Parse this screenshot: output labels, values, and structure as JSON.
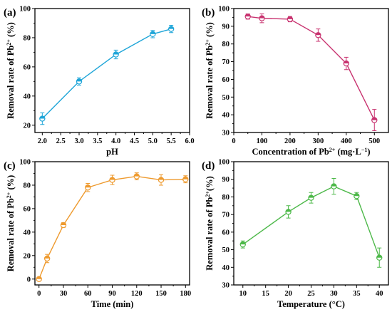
{
  "chart_data": [
    {
      "panel": "(a)",
      "type": "line",
      "color": "#1ea5d8",
      "xlabel": "pH",
      "ylabel": "Removal rate of Pb2+ (%)",
      "ylabel_parts": [
        "Removal rate of Pb",
        "2+",
        " (%)"
      ],
      "xlim": [
        1.8,
        6.0
      ],
      "ylim": [
        15,
        100
      ],
      "xticks": [
        2.0,
        2.5,
        3.0,
        3.5,
        4.0,
        4.5,
        5.0,
        5.5,
        6.0
      ],
      "xtick_labels": [
        "2.0",
        "2.5",
        "3.0",
        "3.5",
        "4.0",
        "4.5",
        "5.0",
        "5.5",
        "6.0"
      ],
      "yticks": [
        20,
        40,
        60,
        80,
        100
      ],
      "ytick_labels": [
        "20",
        "40",
        "60",
        "80",
        "100"
      ],
      "x": [
        2.0,
        3.0,
        4.0,
        5.0,
        5.5
      ],
      "y": [
        24.5,
        50,
        68.5,
        82.5,
        86
      ],
      "err": [
        4,
        2.5,
        3,
        2.5,
        2.5
      ]
    },
    {
      "panel": "(b)",
      "type": "line",
      "color": "#c8326f",
      "xlabel": "Concentration of Pb2+ (mg·L−1)",
      "xlabel_parts": [
        "Concentration of Pb",
        "2+",
        " (mg·L",
        "−1",
        ")"
      ],
      "ylabel": "Removal rate of Pb2+ (%)",
      "ylabel_parts": [
        "Removal rate of Pb",
        "2+",
        " (%)"
      ],
      "xlim": [
        0,
        550
      ],
      "ylim": [
        30,
        100
      ],
      "xticks": [
        0,
        100,
        200,
        300,
        400,
        500
      ],
      "xtick_labels": [
        "0",
        "100",
        "200",
        "300",
        "400",
        "500"
      ],
      "yticks": [
        30,
        40,
        50,
        60,
        70,
        80,
        90,
        100
      ],
      "ytick_labels": [
        "30",
        "40",
        "50",
        "60",
        "70",
        "80",
        "90",
        "100"
      ],
      "x": [
        50,
        100,
        200,
        300,
        400,
        500
      ],
      "y": [
        95.5,
        94.5,
        94,
        85,
        69,
        37
      ],
      "err": [
        1.5,
        2.5,
        1.5,
        3.5,
        3.5,
        6
      ]
    },
    {
      "panel": "(c)",
      "type": "line",
      "color": "#ee9a2e",
      "xlabel": "Time (min)",
      "ylabel": "Removal rate of Pb2+ (%)",
      "ylabel_parts": [
        "Removal rate of Pb",
        "2+",
        " (%)"
      ],
      "xlim": [
        -5,
        185
      ],
      "ylim": [
        -5,
        100
      ],
      "xticks": [
        0,
        30,
        60,
        90,
        120,
        150,
        180
      ],
      "xtick_labels": [
        "0",
        "30",
        "60",
        "90",
        "120",
        "150",
        "180"
      ],
      "yticks": [
        0,
        20,
        40,
        60,
        80,
        100
      ],
      "ytick_labels": [
        "0",
        "20",
        "40",
        "60",
        "80",
        "100"
      ],
      "x": [
        0,
        10,
        30,
        60,
        90,
        120,
        150,
        180
      ],
      "y": [
        0,
        17.5,
        46,
        78,
        84.5,
        87.5,
        84.5,
        85
      ],
      "err": [
        1,
        3.5,
        2,
        3.5,
        4,
        3,
        4.5,
        3
      ]
    },
    {
      "panel": "(d)",
      "type": "line",
      "color": "#4cb848",
      "xlabel": "Temperature (°C)",
      "ylabel": "Removal rate of Pb2+(%)",
      "ylabel_parts": [
        "Removal rate of Pb",
        "2+",
        "(%)"
      ],
      "xlim": [
        8,
        42
      ],
      "ylim": [
        30,
        100
      ],
      "xticks": [
        10,
        15,
        20,
        25,
        30,
        35,
        40
      ],
      "xtick_labels": [
        "10",
        "15",
        "20",
        "25",
        "30",
        "35",
        "40"
      ],
      "yticks": [
        30,
        40,
        50,
        60,
        70,
        80,
        90,
        100
      ],
      "ytick_labels": [
        "30",
        "40",
        "50",
        "60",
        "70",
        "80",
        "90",
        "100"
      ],
      "x": [
        10,
        20,
        25,
        30,
        35,
        40
      ],
      "y": [
        53,
        71.5,
        79.5,
        86,
        80.5,
        45.5
      ],
      "err": [
        2,
        3.5,
        3,
        4.5,
        2,
        5.5
      ]
    }
  ]
}
